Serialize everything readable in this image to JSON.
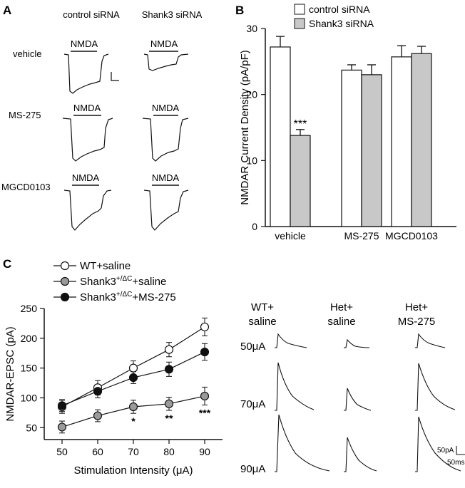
{
  "panels": {
    "a": "A",
    "b": "B",
    "c": "C"
  },
  "panel_a": {
    "columns": [
      "control siRNA",
      "Shank3 siRNA"
    ],
    "rows": [
      "vehicle",
      "MS-275",
      "MGCD0103"
    ],
    "stim_label": "NMDA"
  },
  "panel_c_traces": {
    "columns": [
      [
        "WT+",
        "saline"
      ],
      [
        "Het+",
        "saline"
      ],
      [
        "Het+",
        "MS-275"
      ]
    ],
    "rows": [
      "50μA",
      "70μA",
      "90μA"
    ],
    "scale_current": "50pA",
    "scale_time": "50ms"
  },
  "chart_data": [
    {
      "type": "bar",
      "categories": [
        "vehicle",
        "MS-275",
        "MGCD0103"
      ],
      "series": [
        {
          "name": "control siRNA",
          "color": "#ffffff",
          "values": [
            27.2,
            23.7,
            25.7
          ],
          "errors": [
            1.6,
            0.8,
            1.7
          ]
        },
        {
          "name": "Shank3 siRNA",
          "color": "#c8c8c8",
          "values": [
            13.8,
            23.0,
            26.2
          ],
          "errors": [
            0.9,
            1.5,
            1.1
          ]
        }
      ],
      "ylabel": "NMDAR Current Density (pA/pF)",
      "ylim": [
        0,
        30
      ],
      "yticks": [
        0,
        10,
        20,
        30
      ],
      "annotations": [
        {
          "category": "vehicle",
          "series": "Shank3 siRNA",
          "text": "***"
        }
      ]
    },
    {
      "type": "line",
      "x": [
        50,
        60,
        70,
        80,
        90
      ],
      "series": [
        {
          "name": "WT+saline",
          "legend_text": "WT+saline",
          "fill": "#ffffff",
          "values": [
            85,
            117,
            150,
            181,
            219
          ],
          "errors": [
            11,
            12,
            12,
            12,
            15
          ]
        },
        {
          "name": "Shank3+/ΔC+saline",
          "legend_base": "Shank3",
          "legend_sup": "+/ΔC",
          "legend_tail": "+saline",
          "fill": "#9a9a9a",
          "values": [
            51,
            70,
            85,
            90,
            103
          ],
          "errors": [
            10,
            10,
            11,
            11,
            15
          ]
        },
        {
          "name": "Shank3+/ΔC+MS-275",
          "legend_base": "Shank3",
          "legend_sup": "+/ΔC",
          "legend_tail": "+MS-275",
          "fill": "#111111",
          "values": [
            87,
            111,
            134,
            148,
            177
          ],
          "errors": [
            10,
            11,
            10,
            12,
            14
          ]
        }
      ],
      "xlabel": "Stimulation Intensity (μA)",
      "ylabel": "NMDAR-EPSC (pA)",
      "xlim": [
        45,
        95
      ],
      "ylim": [
        30,
        250
      ],
      "xticks": [
        50,
        60,
        70,
        80,
        90
      ],
      "yticks": [
        50,
        100,
        150,
        200,
        250
      ],
      "annotations": [
        {
          "x": 70,
          "text": "*"
        },
        {
          "x": 80,
          "text": "**"
        },
        {
          "x": 90,
          "text": "***"
        }
      ]
    }
  ]
}
